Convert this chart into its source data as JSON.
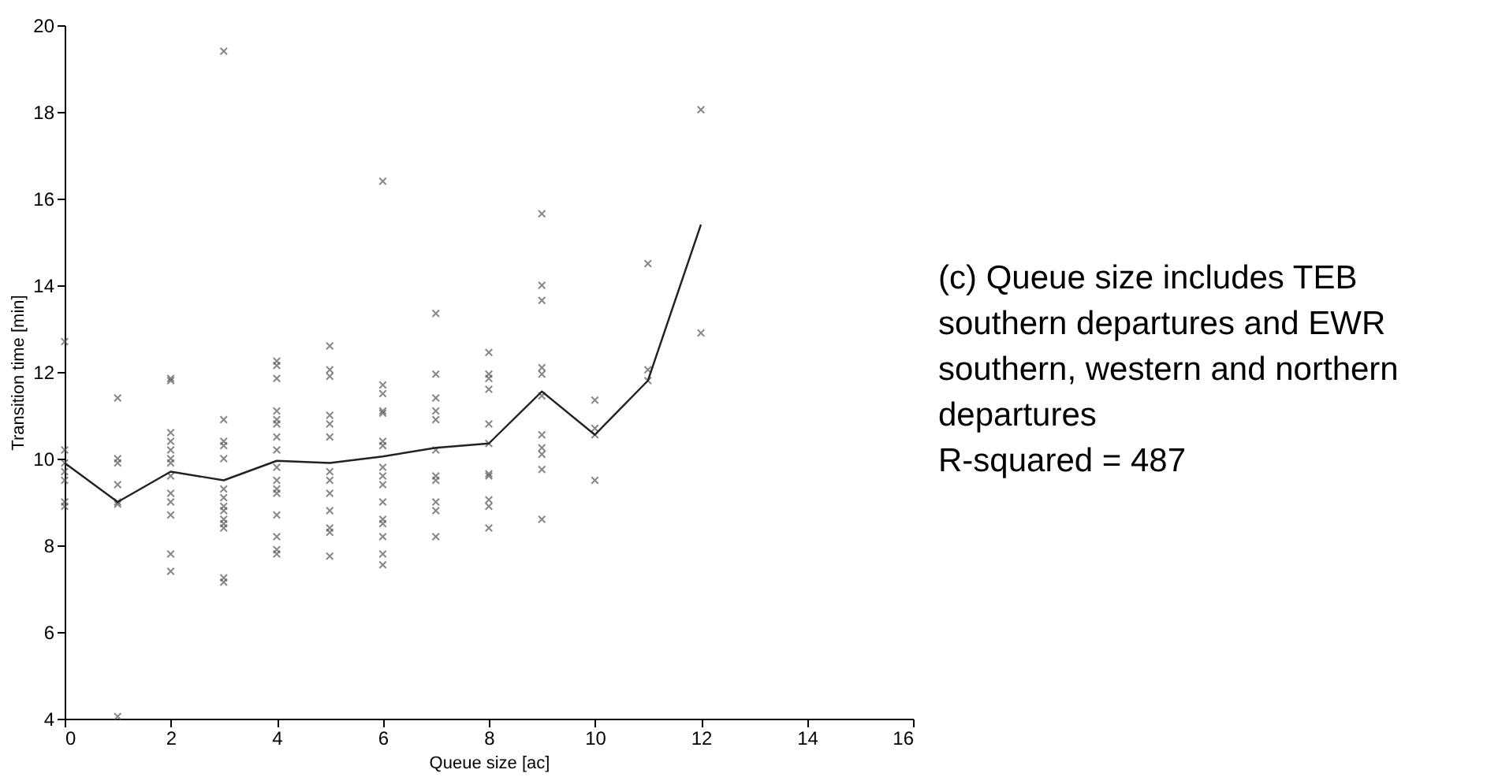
{
  "chart_data": {
    "type": "scatter",
    "xlabel": "Queue size [ac]",
    "ylabel": "Transition time [min]",
    "xlim": [
      0,
      16
    ],
    "xticks": [
      0,
      2,
      4,
      6,
      8,
      10,
      12,
      14,
      16
    ],
    "ylim": [
      4,
      20
    ],
    "yticks": [
      4,
      6,
      8,
      10,
      12,
      14,
      16,
      18,
      20
    ],
    "grid": false,
    "annotations": [
      "(c) Queue size includes TEB southern departures and EWR southern, western and northern departures",
      "R-squared = 487"
    ],
    "series": [
      {
        "marker": "cross",
        "color": "#555555",
        "x": [
          0,
          0,
          0,
          0,
          0,
          0,
          0,
          1,
          1,
          1,
          1,
          1,
          1,
          1,
          2,
          2,
          2,
          2,
          2,
          2,
          2,
          2,
          2,
          2,
          2,
          2,
          2,
          3,
          3,
          3,
          3,
          3,
          3,
          3,
          3,
          3,
          3,
          3,
          3,
          3,
          3,
          4,
          4,
          4,
          4,
          4,
          4,
          4,
          4,
          4,
          4,
          4,
          4,
          4,
          4,
          4,
          4,
          5,
          5,
          5,
          5,
          5,
          5,
          5,
          5,
          5,
          5,
          5,
          5,
          5,
          6,
          6,
          6,
          6,
          6,
          6,
          6,
          6,
          6,
          6,
          6,
          6,
          6,
          6,
          6,
          6,
          7,
          7,
          7,
          7,
          7,
          7,
          7,
          7,
          7,
          7,
          7,
          8,
          8,
          8,
          8,
          8,
          8,
          8,
          8,
          8,
          8,
          8,
          9,
          9,
          9,
          9,
          9,
          9,
          9,
          9,
          9,
          9,
          9,
          10,
          10,
          10,
          10,
          11,
          11,
          11,
          12,
          12
        ],
        "values": [
          12.7,
          10.2,
          9.9,
          9.7,
          9.5,
          9.0,
          8.9,
          11.4,
          10.0,
          9.9,
          9.4,
          9.0,
          8.95,
          4.05,
          11.85,
          11.8,
          10.6,
          10.4,
          10.2,
          10.0,
          9.9,
          9.6,
          9.2,
          9.0,
          8.7,
          7.8,
          7.4,
          19.4,
          10.9,
          10.4,
          10.3,
          10.0,
          9.3,
          9.1,
          8.9,
          8.8,
          8.6,
          8.5,
          8.4,
          7.25,
          7.15,
          12.25,
          12.15,
          11.85,
          11.1,
          10.9,
          10.8,
          10.5,
          10.2,
          9.8,
          9.5,
          9.3,
          9.2,
          8.7,
          8.2,
          7.9,
          7.8,
          12.6,
          12.05,
          11.9,
          11.0,
          10.8,
          10.5,
          9.7,
          9.5,
          9.2,
          8.8,
          8.4,
          8.3,
          7.75,
          16.4,
          11.7,
          11.5,
          11.1,
          11.05,
          10.4,
          10.3,
          9.8,
          9.6,
          9.4,
          9.0,
          8.6,
          8.5,
          8.2,
          7.8,
          7.55,
          13.35,
          11.95,
          11.4,
          11.1,
          10.9,
          10.2,
          9.6,
          9.5,
          9.0,
          8.8,
          8.2,
          12.45,
          11.95,
          11.85,
          11.6,
          10.8,
          10.35,
          9.65,
          9.6,
          9.05,
          8.9,
          8.4,
          15.65,
          14.0,
          13.65,
          12.1,
          11.95,
          11.45,
          10.55,
          10.25,
          10.1,
          9.75,
          8.6,
          11.35,
          10.7,
          10.55,
          9.5,
          14.5,
          12.05,
          11.8,
          18.05,
          12.9
        ]
      },
      {
        "type": "line",
        "marker": "none",
        "line_style": "solid",
        "color": "#222222",
        "x": [
          0,
          1,
          2,
          3,
          4,
          5,
          6,
          7,
          8,
          9,
          10,
          11,
          12
        ],
        "values": [
          9.9,
          9.0,
          9.7,
          9.5,
          9.95,
          9.9,
          10.05,
          10.25,
          10.35,
          11.55,
          10.55,
          11.8,
          15.4
        ]
      }
    ]
  }
}
